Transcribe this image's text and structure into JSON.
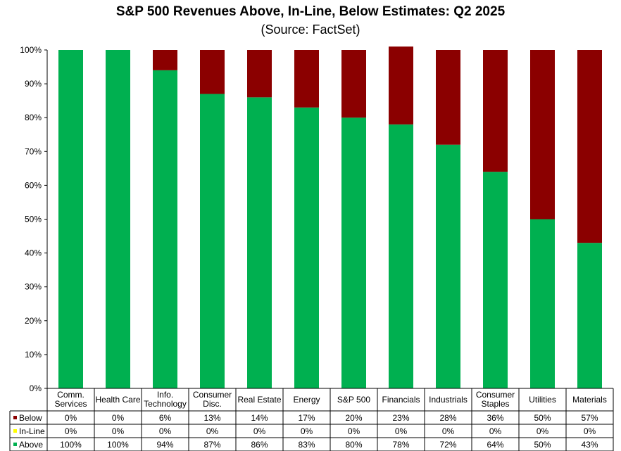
{
  "chart_data": {
    "type": "bar",
    "stacked": true,
    "title": "S&P 500 Revenues Above, In-Line, Below Estimates: Q2 2025",
    "subtitle": "(Source: FactSet)",
    "ylim": [
      0,
      100
    ],
    "yticks": [
      "0%",
      "10%",
      "20%",
      "30%",
      "40%",
      "50%",
      "60%",
      "70%",
      "80%",
      "90%",
      "100%"
    ],
    "categories": [
      [
        "Comm.",
        "Services"
      ],
      [
        "Health Care"
      ],
      [
        "Info.",
        "Technology"
      ],
      [
        "Consumer",
        "Disc."
      ],
      [
        "Real Estate"
      ],
      [
        "Energy"
      ],
      [
        "S&P 500"
      ],
      [
        "Financials"
      ],
      [
        "Industrials"
      ],
      [
        "Consumer",
        "Staples"
      ],
      [
        "Utilities"
      ],
      [
        "Materials"
      ]
    ],
    "series": [
      {
        "name": "Below",
        "color": "#8B0000",
        "values": [
          0,
          0,
          6,
          13,
          14,
          17,
          20,
          23,
          28,
          36,
          50,
          57
        ],
        "labels": [
          "0%",
          "0%",
          "6%",
          "13%",
          "14%",
          "17%",
          "20%",
          "23%",
          "28%",
          "36%",
          "50%",
          "57%"
        ]
      },
      {
        "name": "In-Line",
        "color": "#FFFF00",
        "values": [
          0,
          0,
          0,
          0,
          0,
          0,
          0,
          0,
          0,
          0,
          0,
          0
        ],
        "labels": [
          "0%",
          "0%",
          "0%",
          "0%",
          "0%",
          "0%",
          "0%",
          "0%",
          "0%",
          "0%",
          "0%",
          "0%"
        ]
      },
      {
        "name": "Above",
        "color": "#00B050",
        "values": [
          100,
          100,
          94,
          87,
          86,
          83,
          80,
          78,
          72,
          64,
          50,
          43
        ],
        "labels": [
          "100%",
          "100%",
          "94%",
          "87%",
          "86%",
          "83%",
          "80%",
          "78%",
          "72%",
          "64%",
          "50%",
          "43%"
        ]
      }
    ]
  }
}
